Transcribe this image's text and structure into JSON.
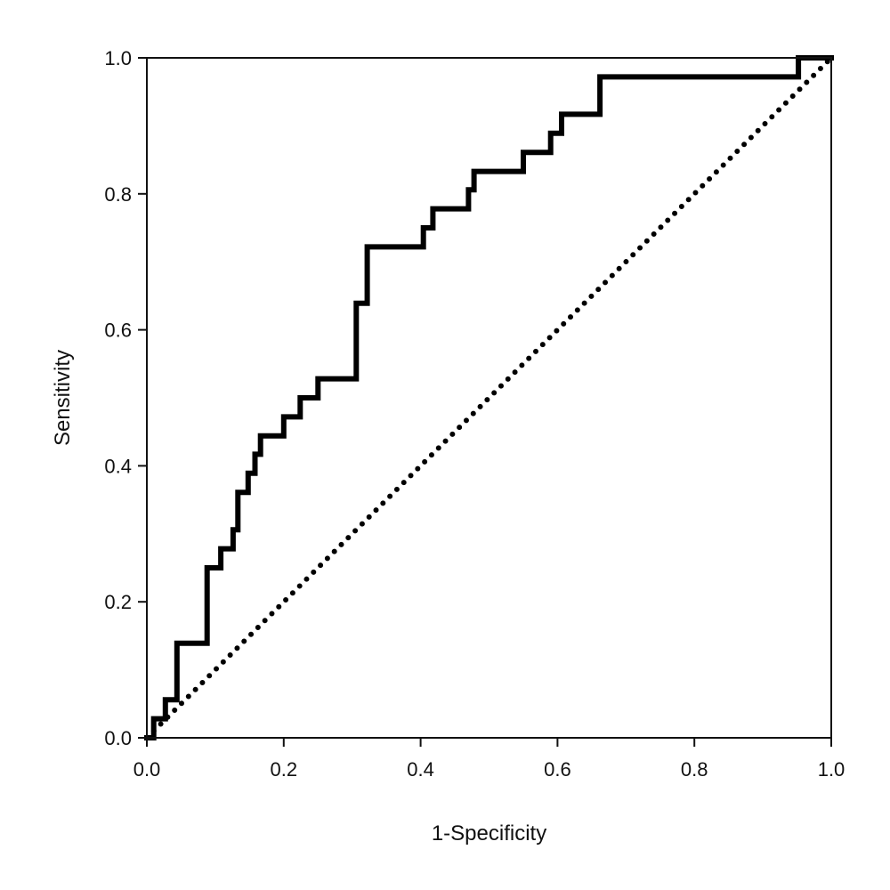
{
  "chart_data": {
    "type": "line",
    "title": "",
    "xlabel": "1-Specificity",
    "ylabel": "Sensitivity",
    "xlim": [
      0,
      1
    ],
    "ylim": [
      0,
      1
    ],
    "grid": false,
    "x_ticks": [
      "0.0",
      "0.2",
      "0.4",
      "0.6",
      "0.8",
      "1.0"
    ],
    "y_ticks": [
      "0.0",
      "0.2",
      "0.4",
      "0.6",
      "0.8",
      "1.0"
    ],
    "series": [
      {
        "style": "solid step",
        "color": "#000000",
        "points": [
          [
            0.0,
            0.0
          ],
          [
            0.01,
            0.0
          ],
          [
            0.01,
            0.028
          ],
          [
            0.027,
            0.028
          ],
          [
            0.027,
            0.056
          ],
          [
            0.044,
            0.056
          ],
          [
            0.044,
            0.139
          ],
          [
            0.088,
            0.139
          ],
          [
            0.088,
            0.25
          ],
          [
            0.108,
            0.25
          ],
          [
            0.108,
            0.278
          ],
          [
            0.126,
            0.278
          ],
          [
            0.126,
            0.306
          ],
          [
            0.133,
            0.306
          ],
          [
            0.133,
            0.361
          ],
          [
            0.148,
            0.361
          ],
          [
            0.148,
            0.389
          ],
          [
            0.158,
            0.389
          ],
          [
            0.158,
            0.417
          ],
          [
            0.166,
            0.417
          ],
          [
            0.166,
            0.444
          ],
          [
            0.2,
            0.444
          ],
          [
            0.2,
            0.472
          ],
          [
            0.224,
            0.472
          ],
          [
            0.224,
            0.5
          ],
          [
            0.25,
            0.5
          ],
          [
            0.25,
            0.528
          ],
          [
            0.306,
            0.528
          ],
          [
            0.306,
            0.639
          ],
          [
            0.322,
            0.639
          ],
          [
            0.322,
            0.722
          ],
          [
            0.404,
            0.722
          ],
          [
            0.404,
            0.75
          ],
          [
            0.418,
            0.75
          ],
          [
            0.418,
            0.778
          ],
          [
            0.47,
            0.778
          ],
          [
            0.47,
            0.806
          ],
          [
            0.478,
            0.806
          ],
          [
            0.478,
            0.833
          ],
          [
            0.55,
            0.833
          ],
          [
            0.55,
            0.861
          ],
          [
            0.59,
            0.861
          ],
          [
            0.59,
            0.889
          ],
          [
            0.606,
            0.889
          ],
          [
            0.606,
            0.917
          ],
          [
            0.662,
            0.917
          ],
          [
            0.662,
            0.972
          ],
          [
            0.952,
            0.972
          ],
          [
            0.952,
            1.0
          ],
          [
            1.0,
            1.0
          ]
        ]
      },
      {
        "style": "dotted reference",
        "color": "#000000",
        "points": [
          [
            0.0,
            0.0
          ],
          [
            1.0,
            1.0
          ]
        ]
      }
    ]
  }
}
